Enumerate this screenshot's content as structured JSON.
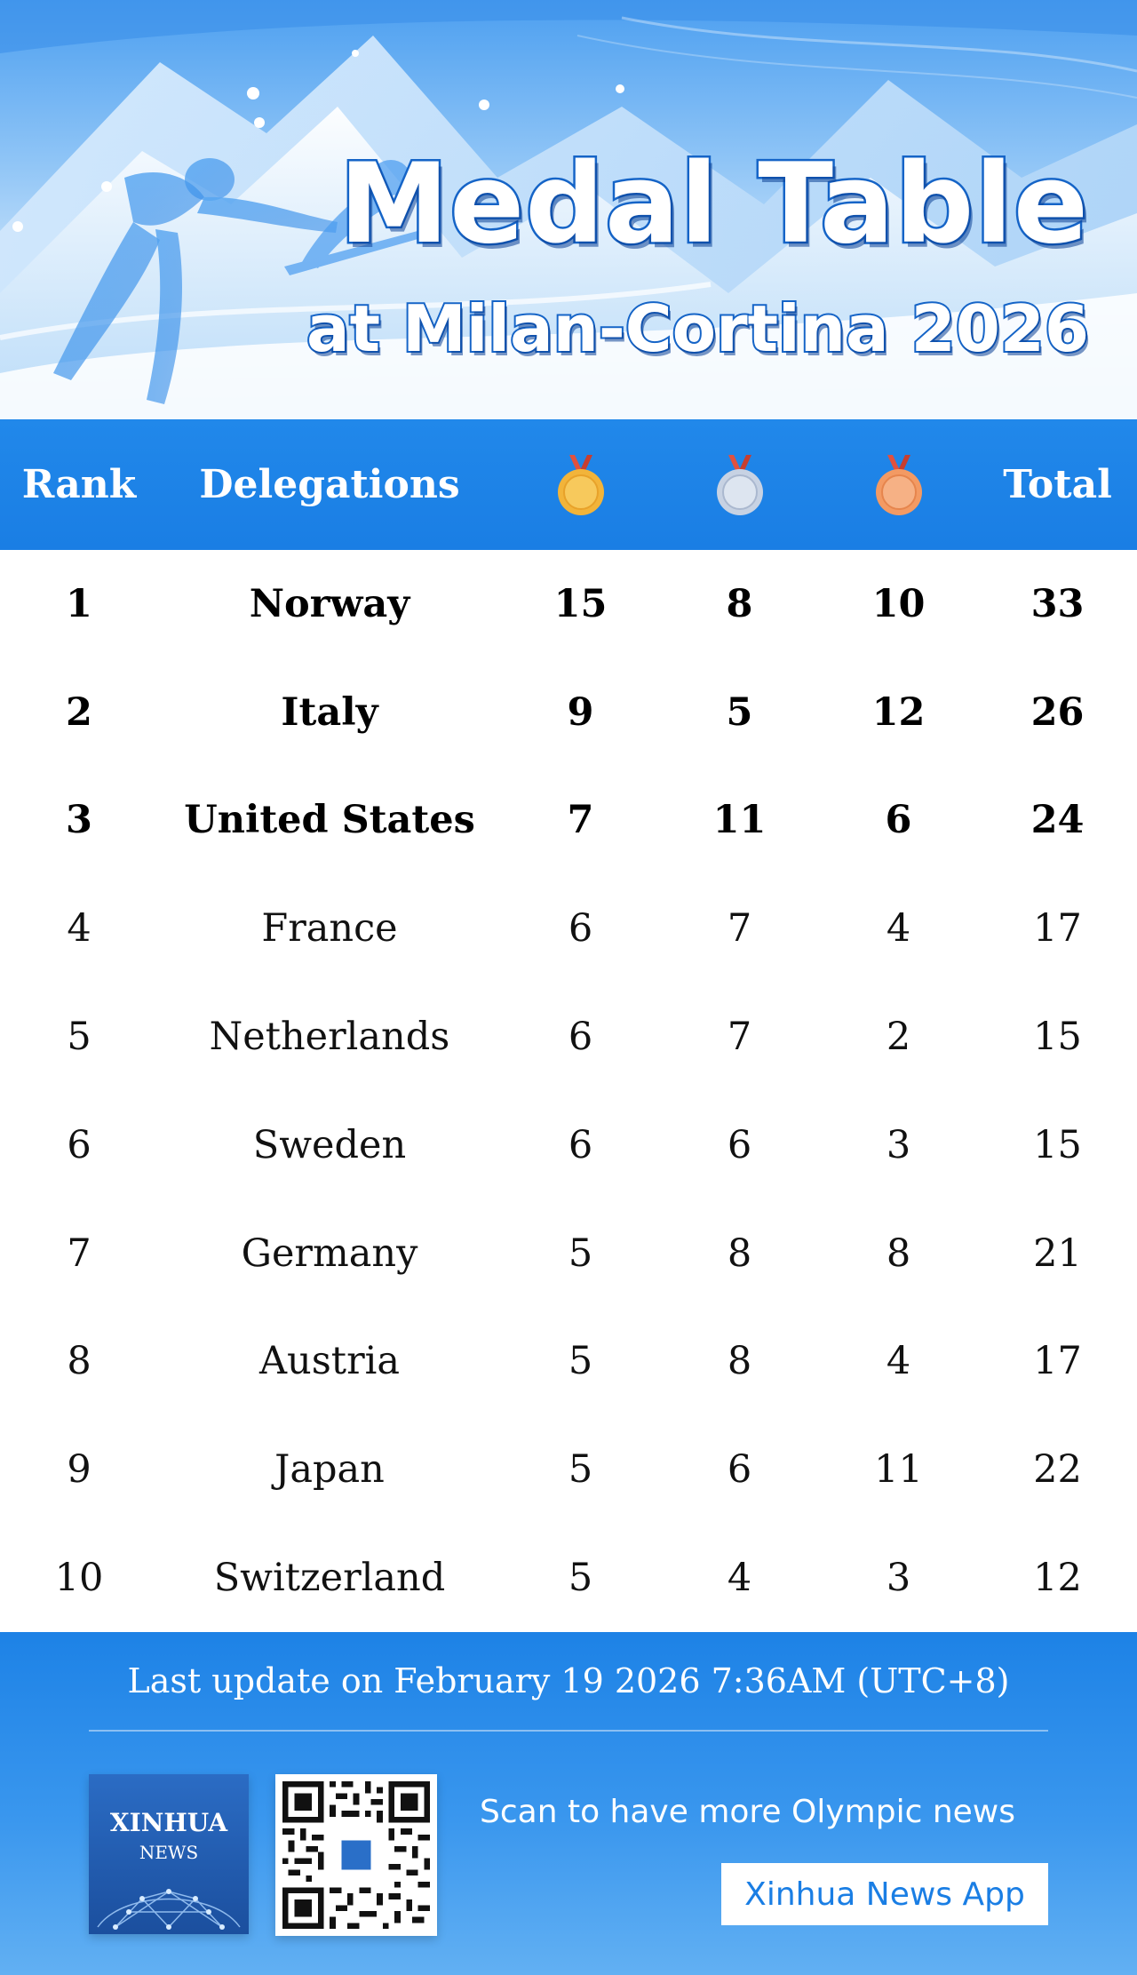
{
  "header": {
    "title": "Medal Table",
    "subtitle": "at Milan-Cortina 2026"
  },
  "table": {
    "columns": {
      "rank": "Rank",
      "delegations": "Delegations",
      "gold_icon": "gold-medal-icon",
      "silver_icon": "silver-medal-icon",
      "bronze_icon": "bronze-medal-icon",
      "total": "Total"
    },
    "rows": [
      {
        "rank": "1",
        "delegation": "Norway",
        "gold": "15",
        "silver": "8",
        "bronze": "10",
        "total": "33"
      },
      {
        "rank": "2",
        "delegation": "Italy",
        "gold": "9",
        "silver": "5",
        "bronze": "12",
        "total": "26"
      },
      {
        "rank": "3",
        "delegation": "United States",
        "gold": "7",
        "silver": "11",
        "bronze": "6",
        "total": "24"
      },
      {
        "rank": "4",
        "delegation": "France",
        "gold": "6",
        "silver": "7",
        "bronze": "4",
        "total": "17"
      },
      {
        "rank": "5",
        "delegation": "Netherlands",
        "gold": "6",
        "silver": "7",
        "bronze": "2",
        "total": "15"
      },
      {
        "rank": "6",
        "delegation": "Sweden",
        "gold": "6",
        "silver": "6",
        "bronze": "3",
        "total": "15"
      },
      {
        "rank": "7",
        "delegation": "Germany",
        "gold": "5",
        "silver": "8",
        "bronze": "8",
        "total": "21"
      },
      {
        "rank": "8",
        "delegation": "Austria",
        "gold": "5",
        "silver": "8",
        "bronze": "4",
        "total": "17"
      },
      {
        "rank": "9",
        "delegation": "Japan",
        "gold": "5",
        "silver": "6",
        "bronze": "11",
        "total": "22"
      },
      {
        "rank": "10",
        "delegation": "Switzerland",
        "gold": "5",
        "silver": "4",
        "bronze": "3",
        "total": "12"
      }
    ]
  },
  "footer": {
    "last_update": "Last update on February 19 2026 7:36AM (UTC+8)",
    "logo_name": "XINHUA",
    "logo_sub": "NEWS",
    "scan_text": "Scan to have more Olympic news",
    "app_label": "Xinhua News App"
  },
  "colors": {
    "header_blue": "#1a7ee4",
    "title_outline": "#1564c7",
    "gold": "#f2b43a",
    "silver": "#c7d2e3",
    "bronze": "#f39a63",
    "ribbon_red": "#e0513f"
  }
}
